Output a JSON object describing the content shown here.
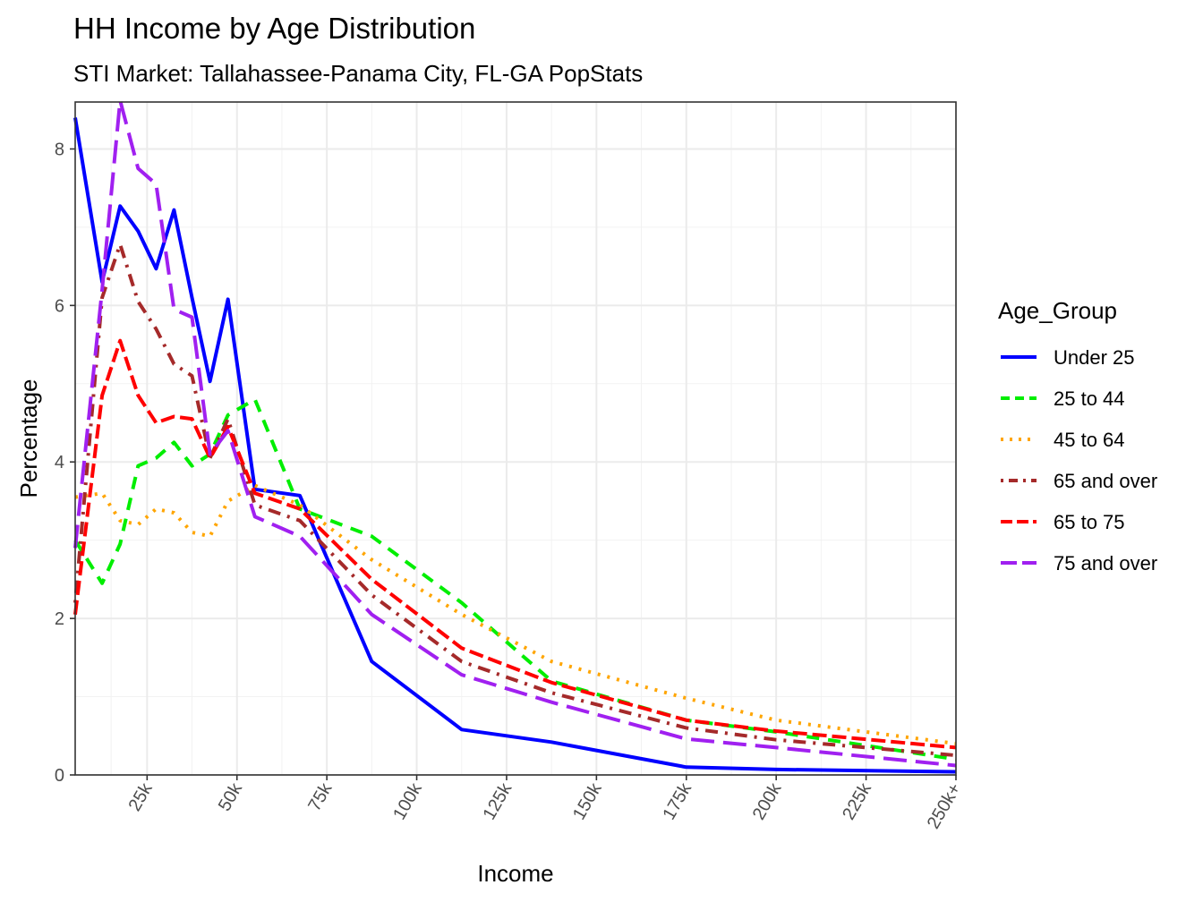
{
  "chart_data": {
    "type": "line",
    "title": "HH Income by Age Distribution",
    "subtitle": "STI Market: Tallahassee-Panama City, FL-GA PopStats",
    "xlabel": "Income",
    "ylabel": "Percentage",
    "xlim": [
      5,
      250
    ],
    "ylim": [
      0,
      8.6
    ],
    "x_ticks": [
      25,
      50,
      75,
      100,
      125,
      150,
      175,
      200,
      225,
      250
    ],
    "x_tick_labels": [
      "25k",
      "50k",
      "75k",
      "100k",
      "125k",
      "150k",
      "175k",
      "200k",
      "225k",
      "250k+"
    ],
    "y_ticks": [
      0,
      2,
      4,
      6,
      8
    ],
    "y_tick_labels": [
      "0",
      "2",
      "4",
      "6",
      "8"
    ],
    "grid": true,
    "legend_title": "Age_Group",
    "legend_position": "right",
    "x": [
      5,
      12.5,
      17.5,
      22.5,
      27.5,
      32.5,
      37.5,
      42.5,
      47.5,
      55,
      67.5,
      87.5,
      112.5,
      137.5,
      175,
      200,
      250
    ],
    "series": [
      {
        "name": "Under 25",
        "color": "#0000FF",
        "dash": "solid",
        "values": [
          8.4,
          6.3,
          7.27,
          6.95,
          6.47,
          7.22,
          6.1,
          5.03,
          6.08,
          3.65,
          3.57,
          1.45,
          0.58,
          0.42,
          0.1,
          0.07,
          0.04
        ]
      },
      {
        "name": "25 to 44",
        "color": "#00EE00",
        "dash": "dashed",
        "values": [
          3.0,
          2.45,
          2.95,
          3.95,
          4.05,
          4.25,
          3.95,
          4.1,
          4.6,
          4.8,
          3.4,
          3.05,
          2.2,
          1.2,
          0.7,
          0.55,
          0.2
        ]
      },
      {
        "name": "45 to 64",
        "color": "#FFA500",
        "dash": "dotted",
        "values": [
          3.55,
          3.6,
          3.25,
          3.2,
          3.4,
          3.35,
          3.1,
          3.05,
          3.5,
          3.7,
          3.45,
          2.75,
          2.05,
          1.45,
          0.98,
          0.7,
          0.4
        ]
      },
      {
        "name": "65 and over",
        "color": "#A52A2A",
        "dash": "dotdash",
        "values": [
          2.2,
          6.1,
          6.78,
          6.05,
          5.7,
          5.25,
          5.1,
          4.05,
          4.55,
          3.45,
          3.25,
          2.3,
          1.45,
          1.05,
          0.6,
          0.45,
          0.25
        ]
      },
      {
        "name": "65 to 75",
        "color": "#FF0000",
        "dash": "longdash-short",
        "values": [
          2.05,
          4.85,
          5.55,
          4.85,
          4.5,
          4.58,
          4.55,
          4.05,
          4.45,
          3.6,
          3.4,
          2.5,
          1.62,
          1.18,
          0.7,
          0.56,
          0.35
        ]
      },
      {
        "name": "75 and over",
        "color": "#A020F0",
        "dash": "longdash",
        "values": [
          2.9,
          6.2,
          8.62,
          7.75,
          7.55,
          5.95,
          5.85,
          4.1,
          4.4,
          3.3,
          3.05,
          2.05,
          1.28,
          0.93,
          0.46,
          0.35,
          0.12
        ]
      }
    ]
  }
}
